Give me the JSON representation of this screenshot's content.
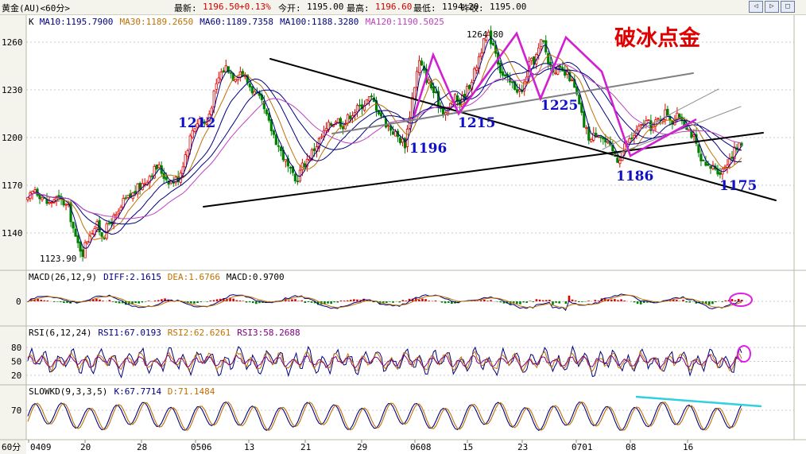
{
  "header": {
    "symbol": "黄金(AU)<60分>",
    "latest_label": "最新:",
    "latest": "1196.50",
    "change": "+0.13%",
    "open_label": "今开:",
    "open": "1195.00",
    "high_label": "最高:",
    "high": "1196.60",
    "low_label": "最低:",
    "low": "1194.20",
    "prev_label": "昨收:",
    "prev": "1195.00"
  },
  "ma_legend": [
    {
      "label": "K",
      "color": "#000000"
    },
    {
      "label": "MA10:1195.7900",
      "color": "#000080"
    },
    {
      "label": "MA30:1189.2650",
      "color": "#c07000"
    },
    {
      "label": "MA60:1189.7358",
      "color": "#000080"
    },
    {
      "label": "MA100:1188.3280",
      "color": "#000080"
    },
    {
      "label": "MA120:1190.5025",
      "color": "#c040c0"
    }
  ],
  "macd_legend": [
    {
      "label": "MACD(26,12,9)",
      "color": "#000000"
    },
    {
      "label": "DIFF:2.1615",
      "color": "#000080"
    },
    {
      "label": "DEA:1.6766",
      "color": "#c07000"
    },
    {
      "label": "MACD:0.9700",
      "color": "#000000"
    }
  ],
  "rsi_legend": [
    {
      "label": "RSI(6,12,24)",
      "color": "#000000"
    },
    {
      "label": "RSI1:67.0193",
      "color": "#000080"
    },
    {
      "label": "RSI2:62.6261",
      "color": "#c07000"
    },
    {
      "label": "RSI3:58.2688",
      "color": "#800080"
    }
  ],
  "kd_legend": [
    {
      "label": "SLOWKD(9,3,3,5)",
      "color": "#000000"
    },
    {
      "label": "K:67.7714",
      "color": "#000080"
    },
    {
      "label": "D:71.1484",
      "color": "#c07000"
    }
  ],
  "annotation_title": "破冰点金",
  "period_label": "60分",
  "chart_data": {
    "type": "candlestick",
    "price_axis": {
      "ticks": [
        1140,
        1170,
        1200,
        1230,
        1260
      ],
      "range": [
        1115,
        1275
      ]
    },
    "macd_axis": {
      "ticks": [
        0
      ]
    },
    "rsi_axis": {
      "ticks": [
        20,
        50,
        80
      ]
    },
    "kd_axis": {
      "ticks": [
        70
      ]
    },
    "date_ticks": [
      "0409",
      "20",
      "28",
      "0506",
      "13",
      "21",
      "29",
      "0608",
      "15",
      "23",
      "0701",
      "08",
      "16"
    ],
    "price_path": [
      [
        0,
        1160
      ],
      [
        1,
        1168
      ],
      [
        2,
        1163
      ],
      [
        3,
        1158
      ],
      [
        4,
        1162
      ],
      [
        5,
        1160
      ],
      [
        6,
        1155
      ],
      [
        7,
        1135
      ],
      [
        8,
        1128
      ],
      [
        9,
        1140
      ],
      [
        10,
        1145
      ],
      [
        11,
        1138
      ],
      [
        12,
        1148
      ],
      [
        13,
        1150
      ],
      [
        14,
        1160
      ],
      [
        15,
        1163
      ],
      [
        16,
        1168
      ],
      [
        17,
        1172
      ],
      [
        18,
        1178
      ],
      [
        19,
        1182
      ],
      [
        20,
        1175
      ],
      [
        21,
        1172
      ],
      [
        22,
        1175
      ],
      [
        23,
        1190
      ],
      [
        24,
        1205
      ],
      [
        25,
        1212
      ],
      [
        26,
        1208
      ],
      [
        27,
        1225
      ],
      [
        28,
        1240
      ],
      [
        29,
        1245
      ],
      [
        30,
        1238
      ],
      [
        31,
        1242
      ],
      [
        32,
        1235
      ],
      [
        33,
        1228
      ],
      [
        34,
        1222
      ],
      [
        35,
        1210
      ],
      [
        36,
        1200
      ],
      [
        37,
        1190
      ],
      [
        38,
        1180
      ],
      [
        39,
        1172
      ],
      [
        40,
        1182
      ],
      [
        41,
        1188
      ],
      [
        42,
        1195
      ],
      [
        43,
        1202
      ],
      [
        44,
        1208
      ],
      [
        45,
        1212
      ],
      [
        46,
        1208
      ],
      [
        47,
        1215
      ],
      [
        48,
        1218
      ],
      [
        49,
        1222
      ],
      [
        50,
        1225
      ],
      [
        51,
        1218
      ],
      [
        52,
        1210
      ],
      [
        53,
        1205
      ],
      [
        54,
        1200
      ],
      [
        55,
        1196
      ],
      [
        56,
        1225
      ],
      [
        57,
        1248
      ],
      [
        58,
        1238
      ],
      [
        59,
        1230
      ],
      [
        60,
        1220
      ],
      [
        61,
        1215
      ],
      [
        62,
        1225
      ],
      [
        63,
        1222
      ],
      [
        64,
        1230
      ],
      [
        65,
        1240
      ],
      [
        66,
        1255
      ],
      [
        67,
        1264.8
      ],
      [
        68,
        1258
      ],
      [
        69,
        1240
      ],
      [
        70,
        1235
      ],
      [
        71,
        1232
      ],
      [
        72,
        1228
      ],
      [
        73,
        1245
      ],
      [
        74,
        1250
      ],
      [
        75,
        1262
      ],
      [
        76,
        1245
      ],
      [
        77,
        1243
      ],
      [
        78,
        1240
      ],
      [
        79,
        1238
      ],
      [
        80,
        1226
      ],
      [
        81,
        1208
      ],
      [
        82,
        1198
      ],
      [
        83,
        1205
      ],
      [
        84,
        1198
      ],
      [
        85,
        1192
      ],
      [
        86,
        1186
      ],
      [
        87,
        1195
      ],
      [
        88,
        1200
      ],
      [
        89,
        1205
      ],
      [
        90,
        1210
      ],
      [
        91,
        1206
      ],
      [
        92,
        1212
      ],
      [
        93,
        1216
      ],
      [
        94,
        1210
      ],
      [
        95,
        1214
      ],
      [
        96,
        1208
      ],
      [
        97,
        1200
      ],
      [
        98,
        1185
      ],
      [
        99,
        1180
      ],
      [
        100,
        1182
      ],
      [
        101,
        1178
      ],
      [
        102,
        1186
      ],
      [
        103,
        1192
      ],
      [
        104,
        1196
      ]
    ],
    "swing_labels": [
      {
        "text": "1212",
        "value": 1212
      },
      {
        "text": "1196",
        "value": 1196
      },
      {
        "text": "1215",
        "value": 1215
      },
      {
        "text": "1264.80",
        "value": 1264.8
      },
      {
        "text": "1225",
        "value": 1225
      },
      {
        "text": "1186",
        "value": 1186
      },
      {
        "text": "1175",
        "value": 1175
      },
      {
        "text": "1123.90",
        "value": 1123.9
      }
    ]
  }
}
